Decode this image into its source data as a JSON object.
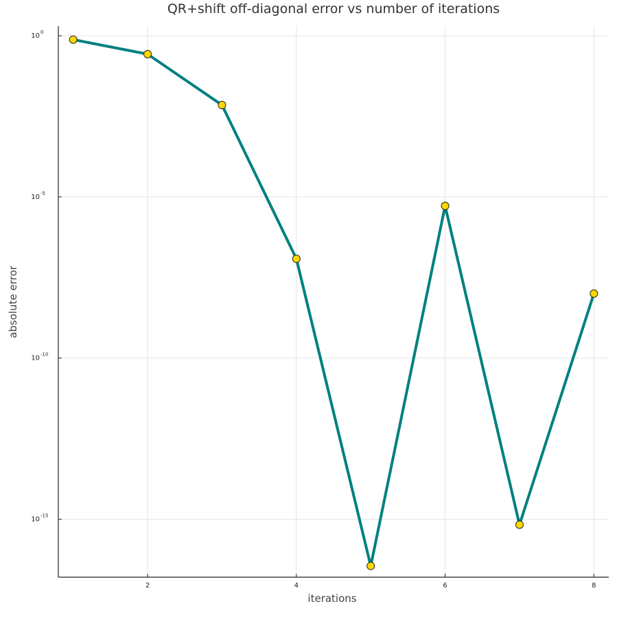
{
  "chart_data": {
    "type": "line",
    "title": "QR+shift off-diagonal error vs number of iterations",
    "xlabel": "iterations",
    "ylabel": "absolute error",
    "yscale": "log10",
    "xlim": [
      0.8,
      8.2
    ],
    "ylim_log10": [
      -16.8,
      0.3
    ],
    "grid": true,
    "legend": "none",
    "x_ticks": [
      2,
      4,
      6,
      8
    ],
    "y_ticks": [
      {
        "base": "10",
        "exponent": "0",
        "log10": 0
      },
      {
        "base": "10",
        "exponent": "-5",
        "log10": -5
      },
      {
        "base": "10",
        "exponent": "-10",
        "log10": -10
      },
      {
        "base": "10",
        "exponent": "-15",
        "log10": -15
      }
    ],
    "series": [
      {
        "x": [
          1,
          2,
          3,
          4,
          5,
          6,
          7,
          8
        ],
        "y_log10": [
          -0.12,
          -0.57,
          -2.15,
          -6.92,
          -16.45,
          -5.28,
          -15.17,
          -8.0
        ],
        "line_color": "#008080",
        "marker_fill": "#FFD700",
        "marker_edge": "#222222"
      }
    ]
  }
}
